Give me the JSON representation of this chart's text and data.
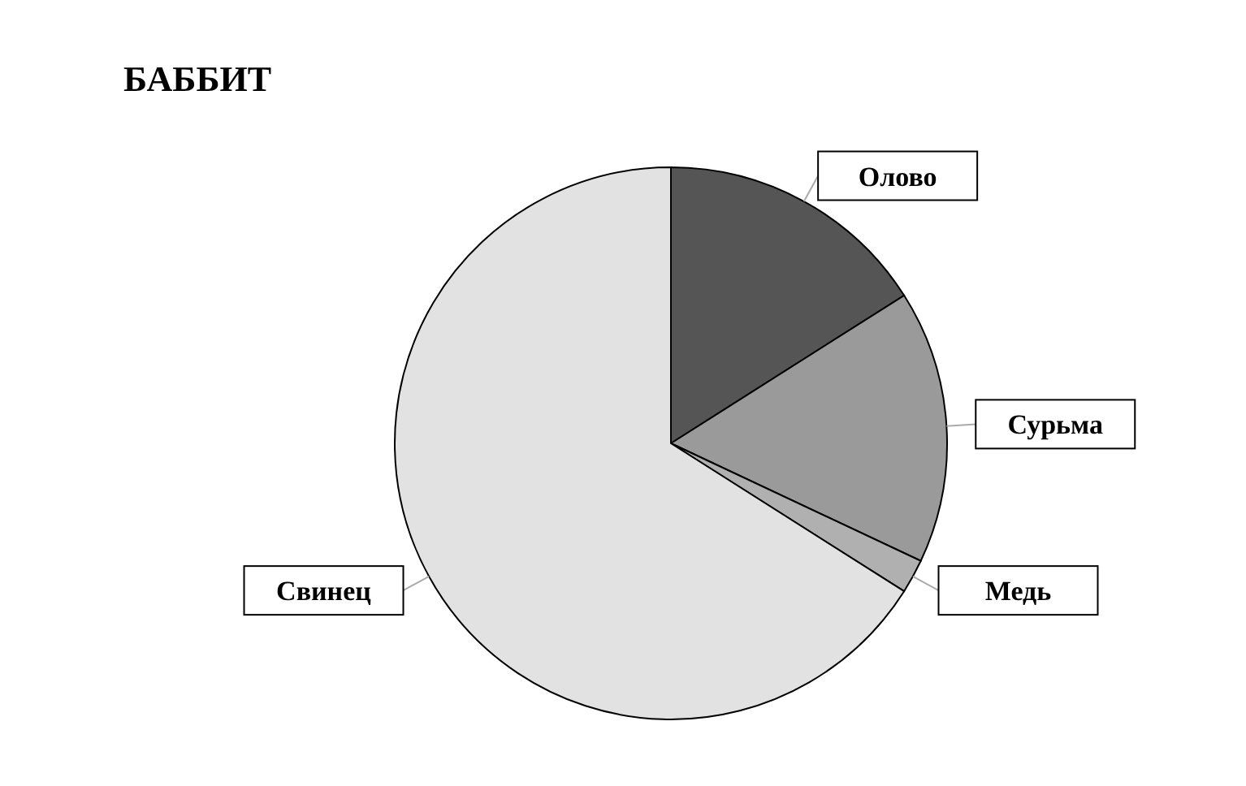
{
  "chart_data": {
    "type": "pie",
    "title": "БАББИТ",
    "categories": [
      "Олово",
      "Сурьма",
      "Медь",
      "Свинец"
    ],
    "values": [
      16,
      16,
      2,
      66
    ],
    "colors": [
      "#555555",
      "#9a9a9a",
      "#b0b0b0",
      "#e2e2e2"
    ]
  }
}
